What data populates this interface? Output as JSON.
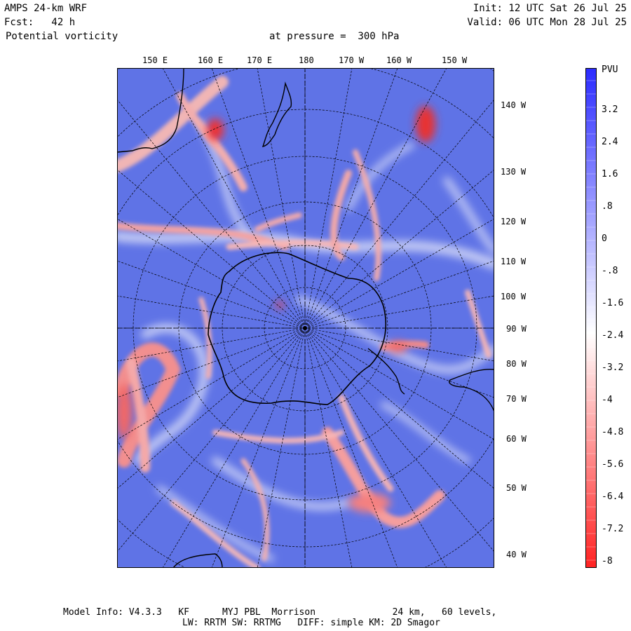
{
  "header": {
    "model": "AMPS 24-km WRF",
    "fcst": "Fcst:   42 h",
    "field": "Potential vorticity",
    "pressure": "at pressure =  300 hPa",
    "init": "Init: 12 UTC Sat 26 Jul 25",
    "valid": "Valid: 06 UTC Mon 28 Jul 25"
  },
  "top_labels": [
    "150 E",
    "160 E",
    "170 E",
    "180",
    "170 W",
    "160 W",
    "150 W"
  ],
  "right_labels": [
    "140 W",
    "130 W",
    "120 W",
    "110 W",
    "100 W",
    "90 W",
    "80 W",
    "70 W",
    "60 W",
    "50 W",
    "40 W"
  ],
  "colorbar": {
    "unit": "PVU",
    "ticks": [
      "3.2",
      "2.4",
      "1.6",
      ".8",
      "0",
      "-.8",
      "-1.6",
      "-2.4",
      "-3.2",
      "-4",
      "-4.8",
      "-5.6",
      "-6.4",
      "-7.2",
      "-8"
    ],
    "positive_color": "#2b2bff",
    "neutral_color": "#ffffff",
    "negative_color": "#ff2222"
  },
  "footer": {
    "line1": "Model Info: V4.3.3   KF      MYJ PBL  Morrison              24 km,   60 levels,",
    "line2": "LW: RRTM SW: RRTMG   DIFF: simple KM: 2D Smagor"
  }
}
